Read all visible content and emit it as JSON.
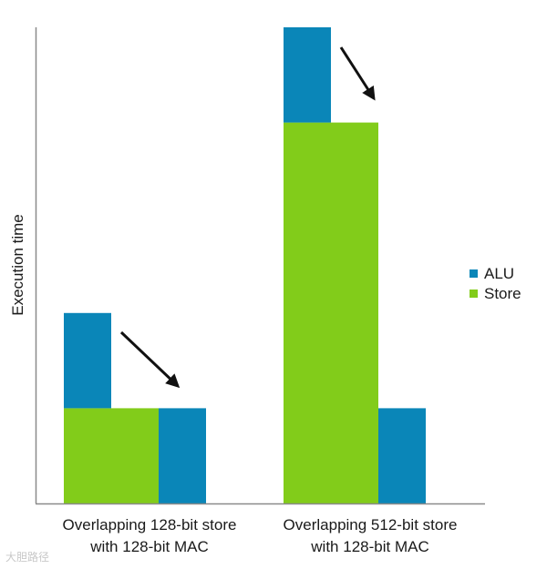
{
  "chart_data": {
    "type": "bar",
    "stacked": true,
    "title": "",
    "ylabel": "Execution time",
    "y_axis_ticks": false,
    "ylim": [
      0,
      100
    ],
    "groups": [
      {
        "label_lines": [
          "Overlapping 128-bit store",
          "with 128-bit MAC"
        ],
        "bars": [
          {
            "segments": [
              {
                "series": "Store",
                "value": 20
              },
              {
                "series": "ALU",
                "value": 20
              }
            ]
          },
          {
            "segments": [
              {
                "series": "Store",
                "value": 20
              }
            ]
          },
          {
            "segments": [
              {
                "series": "ALU",
                "value": 20
              }
            ]
          }
        ]
      },
      {
        "label_lines": [
          "Overlapping 512-bit store",
          "with 128-bit MAC"
        ],
        "bars": [
          {
            "segments": [
              {
                "series": "Store",
                "value": 80
              },
              {
                "series": "ALU",
                "value": 20
              }
            ]
          },
          {
            "segments": [
              {
                "series": "Store",
                "value": 80
              }
            ]
          },
          {
            "segments": [
              {
                "series": "ALU",
                "value": 20
              }
            ]
          }
        ]
      }
    ],
    "legend": {
      "position": "right",
      "items": [
        {
          "name": "ALU",
          "color": "#0a86b8"
        },
        {
          "name": "Store",
          "color": "#82cc1a"
        }
      ]
    },
    "annotations": [
      "arrow from stacked bar to overlapped bars (group 1)",
      "arrow from stacked bar to overlapped bars (group 2)"
    ]
  },
  "watermark": "大胆路径"
}
